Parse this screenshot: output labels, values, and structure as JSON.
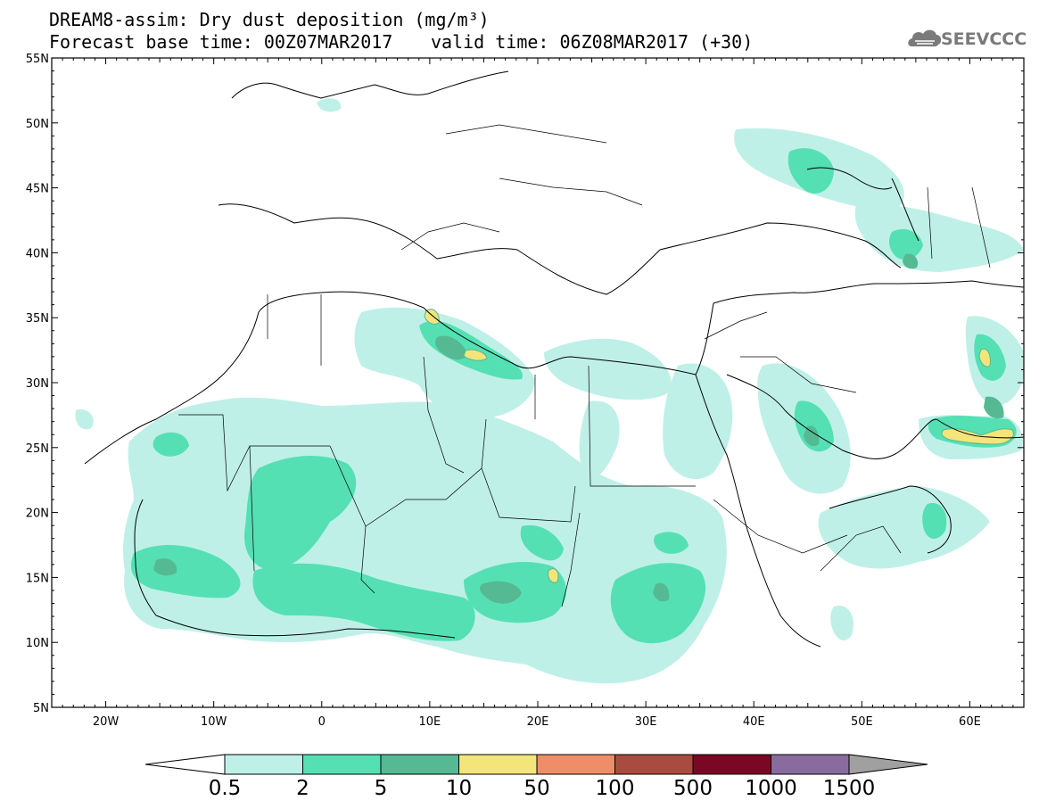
{
  "header": {
    "title": "DREAM8-assim: Dry dust deposition (mg/m³)",
    "base_time": "Forecast base time: 00Z07MAR2017",
    "valid_time": "valid time: 06Z08MAR2017 (+30)"
  },
  "logo": {
    "icon": "cloud-icon",
    "text": "SEEVCCC"
  },
  "axes": {
    "lat_labels": [
      "55N",
      "50N",
      "45N",
      "40N",
      "35N",
      "30N",
      "25N",
      "20N",
      "15N",
      "10N",
      "5N"
    ],
    "lon_labels": [
      "20W",
      "10W",
      "0",
      "10E",
      "20E",
      "30E",
      "40E",
      "50E",
      "60E"
    ]
  },
  "colorbar": {
    "labels": [
      "0.5",
      "2",
      "5",
      "10",
      "50",
      "100",
      "500",
      "1000",
      "1500"
    ],
    "colors": [
      "#bff0e8",
      "#55e0b4",
      "#55b993",
      "#f3e57a",
      "#ee8d68",
      "#aa4b3f",
      "#7b0725",
      "#8a6b9e",
      "#a0a0a0"
    ]
  },
  "dust_colors": {
    "light": "#bff0e8",
    "mid": "#55e0b4",
    "dark": "#55b993",
    "yellow": "#f3e57a"
  }
}
